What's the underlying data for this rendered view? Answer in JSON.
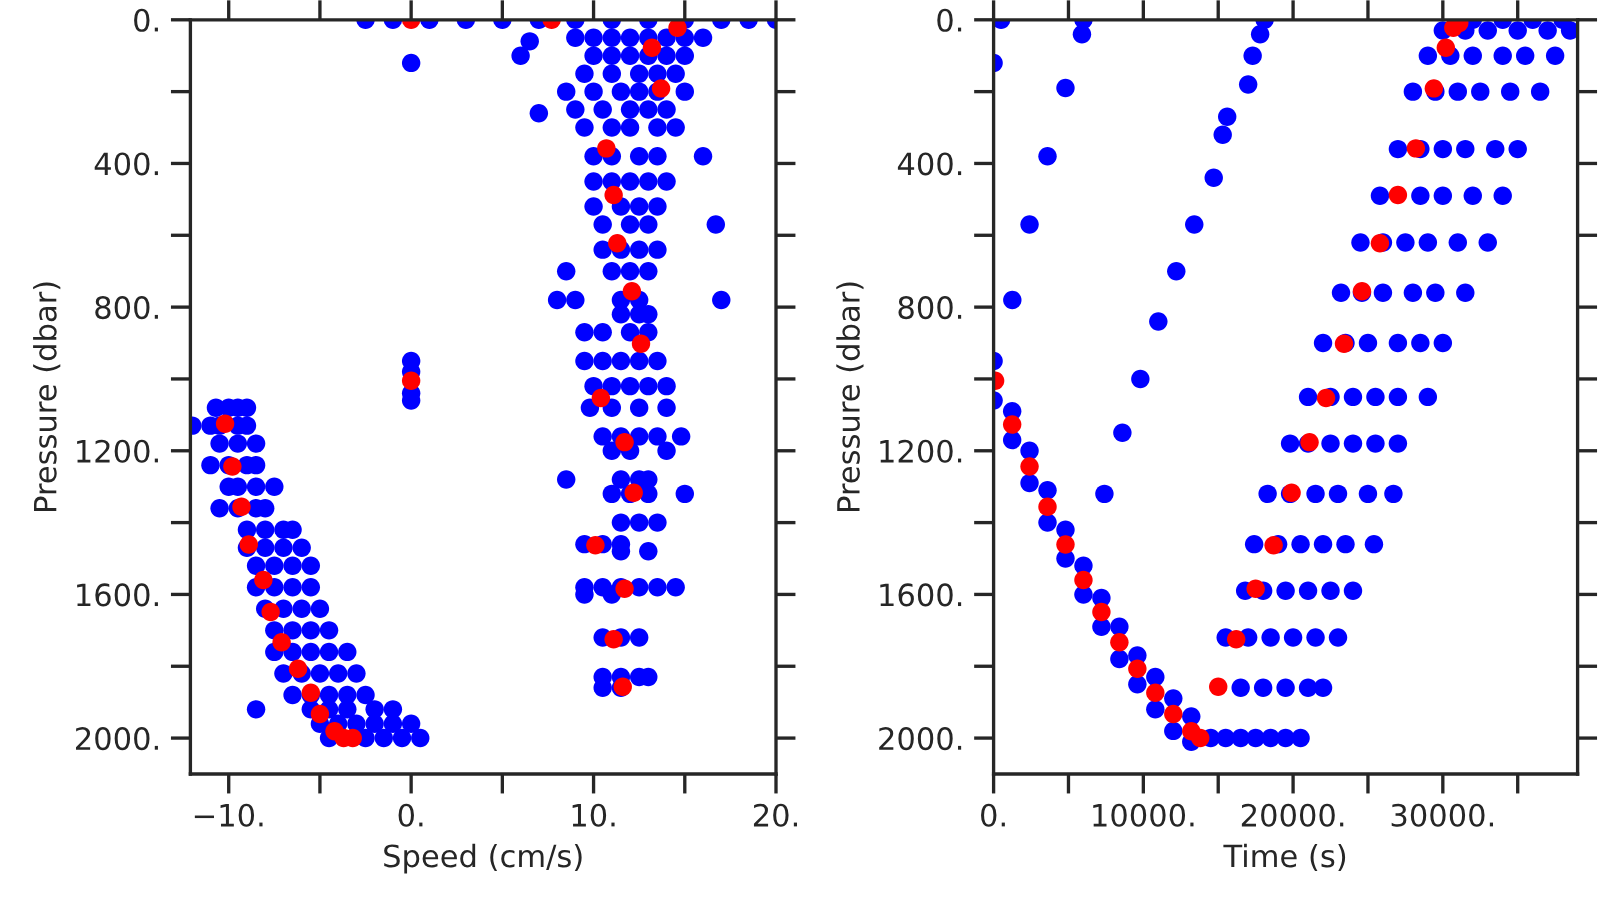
{
  "chart_data": [
    {
      "type": "scatter",
      "xlabel": "Speed (cm/s)",
      "ylabel": "Pressure (dbar)",
      "marker": "circle",
      "grid": false,
      "xlim": [
        -12.1,
        20
      ],
      "ylim": [
        2100,
        0
      ],
      "xticks": [
        {
          "value": -10,
          "label": "−10."
        },
        {
          "value": -5,
          "label": null
        },
        {
          "value": 0,
          "label": "0."
        },
        {
          "value": 5,
          "label": null
        },
        {
          "value": 10,
          "label": "10."
        },
        {
          "value": 15,
          "label": null
        },
        {
          "value": 20,
          "label": "20."
        }
      ],
      "yticks": [
        {
          "value": 0,
          "label": "0."
        },
        {
          "value": 200,
          "label": null
        },
        {
          "value": 400,
          "label": "400."
        },
        {
          "value": 600,
          "label": null
        },
        {
          "value": 800,
          "label": "800."
        },
        {
          "value": 1000,
          "label": null
        },
        {
          "value": 1200,
          "label": "1200."
        },
        {
          "value": 1400,
          "label": null
        },
        {
          "value": 1600,
          "label": "1600."
        },
        {
          "value": 1800,
          "label": null
        },
        {
          "value": 2000,
          "label": "2000."
        }
      ],
      "series": [
        {
          "color": "#0000ff",
          "x": [
            -2.5,
            -1,
            1,
            3,
            5,
            7,
            9,
            11,
            13,
            15,
            17,
            18.5,
            20,
            0,
            6,
            7,
            6.5,
            9,
            10,
            11,
            12,
            13,
            14,
            15,
            16,
            10,
            11,
            12,
            13,
            14,
            15,
            9.5,
            11,
            12.5,
            13.5,
            14.5,
            8.5,
            10,
            11.5,
            12.5,
            13.5,
            15,
            9,
            10.5,
            12,
            13,
            14,
            9.5,
            11,
            12,
            13.5,
            14.5,
            10,
            11,
            12.5,
            13.5,
            16,
            10,
            11,
            12,
            13,
            14,
            10,
            11.5,
            12.5,
            13.5,
            10.5,
            12,
            13,
            16.7,
            10.5,
            11.5,
            12.5,
            13.5,
            8.5,
            11,
            12,
            13,
            8,
            9,
            11.5,
            12.5,
            17,
            11.5,
            12.5,
            13,
            9.5,
            10.5,
            12,
            13,
            9.5,
            10.5,
            11.5,
            12.5,
            13.5,
            10,
            11,
            12,
            13,
            14,
            9.8,
            11,
            12.5,
            14,
            10.5,
            11.5,
            12.5,
            13.5,
            14.8,
            11,
            12,
            14,
            8.5,
            11.5,
            12.5,
            13,
            11,
            12,
            13,
            15,
            11.5,
            12.5,
            13.5,
            9.5,
            10.5,
            11.5,
            11.5,
            13,
            9.5,
            10.5,
            11.5,
            12.5,
            13.5,
            14.5,
            9.5,
            11,
            10.5,
            11.5,
            12.5,
            10.5,
            11.5,
            12.5,
            13,
            10.5,
            11.5,
            0,
            0,
            0,
            0,
            -10.7,
            -10,
            -9.5,
            -9,
            -12,
            -11,
            -10.5,
            -9.5,
            -9,
            -10.5,
            -9.5,
            -8.5,
            -11,
            -10,
            -9,
            -8.5,
            -10,
            -9.5,
            -8.5,
            -7.5,
            -10.5,
            -9.5,
            -8.5,
            -8,
            -9,
            -8,
            -7,
            -6.5,
            -9,
            -8,
            -7,
            -6,
            -8.5,
            -7.5,
            -6.5,
            -5.5,
            -8.5,
            -7.5,
            -6.5,
            -5.5,
            -8,
            -7,
            -6,
            -5,
            -7.5,
            -6.5,
            -5.5,
            -4.5,
            -7.5,
            -6.5,
            -5.5,
            -4.5,
            -3.5,
            -7,
            -6,
            -5,
            -4,
            -3,
            -6.5,
            -5.5,
            -4.5,
            -3.5,
            -2.5,
            -8.5,
            -5.5,
            -4.5,
            -3.5,
            -2,
            -1,
            -5,
            -4,
            -3,
            -2,
            -1,
            0,
            -4.5,
            -2.5,
            -1.5,
            -0.5,
            0.5
          ],
          "values": [
            0,
            0,
            0,
            0,
            0,
            0,
            0,
            0,
            0,
            0,
            0,
            0,
            0,
            120,
            100,
            260,
            60,
            50,
            50,
            50,
            50,
            50,
            50,
            50,
            50,
            100,
            100,
            100,
            100,
            100,
            100,
            150,
            150,
            150,
            150,
            150,
            200,
            200,
            200,
            200,
            200,
            200,
            250,
            250,
            250,
            250,
            250,
            300,
            300,
            300,
            300,
            300,
            380,
            380,
            380,
            380,
            380,
            450,
            450,
            450,
            450,
            450,
            520,
            520,
            520,
            520,
            570,
            570,
            570,
            570,
            640,
            640,
            640,
            640,
            700,
            700,
            700,
            700,
            780,
            780,
            780,
            780,
            780,
            820,
            820,
            820,
            870,
            870,
            870,
            870,
            950,
            950,
            950,
            950,
            950,
            1020,
            1020,
            1020,
            1020,
            1020,
            1080,
            1080,
            1080,
            1080,
            1160,
            1160,
            1160,
            1160,
            1160,
            1200,
            1200,
            1200,
            1280,
            1280,
            1280,
            1280,
            1320,
            1320,
            1320,
            1320,
            1400,
            1400,
            1400,
            1460,
            1460,
            1460,
            1480,
            1480,
            1580,
            1580,
            1580,
            1580,
            1580,
            1580,
            1600,
            1600,
            1720,
            1720,
            1720,
            1830,
            1830,
            1830,
            1830,
            1860,
            1860,
            950,
            980,
            1040,
            1060,
            1080,
            1080,
            1080,
            1080,
            1130,
            1130,
            1130,
            1130,
            1130,
            1180,
            1180,
            1180,
            1240,
            1240,
            1240,
            1240,
            1300,
            1300,
            1300,
            1300,
            1360,
            1360,
            1360,
            1360,
            1420,
            1420,
            1420,
            1420,
            1470,
            1470,
            1470,
            1470,
            1520,
            1520,
            1520,
            1520,
            1580,
            1580,
            1580,
            1580,
            1640,
            1640,
            1640,
            1640,
            1700,
            1700,
            1700,
            1700,
            1760,
            1760,
            1760,
            1760,
            1760,
            1820,
            1820,
            1820,
            1820,
            1820,
            1880,
            1880,
            1880,
            1880,
            1880,
            1920,
            1920,
            1920,
            1920,
            1920,
            1920,
            1960,
            1960,
            1960,
            1960,
            1960,
            1960,
            2000,
            2000,
            2000,
            2000,
            2000
          ]
        },
        {
          "color": "#ff0000",
          "x": [
            0,
            7.7,
            14.6,
            13.2,
            13.7,
            10.7,
            11.1,
            11.3,
            12.1,
            12.6,
            10.4,
            11.7,
            12.2,
            10.1,
            11.7,
            11.1,
            11.6,
            0,
            -10.2,
            -9.8,
            -9.3,
            -8.9,
            -8.1,
            -7.7,
            -7.1,
            -6.2,
            -5.5,
            -5,
            -4.2,
            -3.7,
            -3.2
          ],
          "values": [
            0,
            0,
            22,
            78,
            191,
            358,
            488,
            622,
            756,
            902,
            1053,
            1176,
            1317,
            1463,
            1584,
            1725,
            1857,
            1005,
            1125,
            1244,
            1356,
            1461,
            1560,
            1649,
            1733,
            1807,
            1874,
            1933,
            1981,
            2000,
            2000
          ]
        }
      ]
    },
    {
      "type": "scatter",
      "xlabel": "Time (s)",
      "ylabel": "Pressure (dbar)",
      "marker": "circle",
      "grid": false,
      "xlim": [
        0,
        39000
      ],
      "ylim": [
        2100,
        0
      ],
      "xticks": [
        {
          "value": 0,
          "label": "0."
        },
        {
          "value": 5000,
          "label": null
        },
        {
          "value": 10000,
          "label": "10000."
        },
        {
          "value": 15000,
          "label": null
        },
        {
          "value": 20000,
          "label": "20000."
        },
        {
          "value": 25000,
          "label": null
        },
        {
          "value": 30000,
          "label": "30000."
        },
        {
          "value": 35000,
          "label": null
        }
      ],
      "yticks": [
        {
          "value": 0,
          "label": "0."
        },
        {
          "value": 200,
          "label": null
        },
        {
          "value": 400,
          "label": "400."
        },
        {
          "value": 600,
          "label": null
        },
        {
          "value": 800,
          "label": "800."
        },
        {
          "value": 1000,
          "label": null
        },
        {
          "value": 1200,
          "label": "1200."
        },
        {
          "value": 1400,
          "label": null
        },
        {
          "value": 1600,
          "label": "1600."
        },
        {
          "value": 1800,
          "label": null
        },
        {
          "value": 2000,
          "label": "2000."
        }
      ],
      "series": [
        {
          "color": "#0000ff",
          "x": [
            0,
            0,
            1240,
            1240,
            2400,
            2400,
            3600,
            3600,
            4800,
            4800,
            6000,
            6000,
            7200,
            7200,
            8400,
            8400,
            9600,
            9600,
            10800,
            10800,
            12000,
            12000,
            13200,
            13200,
            500,
            0,
            4800,
            3600,
            2400,
            1250,
            6000,
            5900,
            18100,
            17800,
            17300,
            17000,
            15600,
            15300,
            14700,
            13400,
            12200,
            11000,
            9800,
            8600,
            7400,
            14500,
            15500,
            16500,
            17500,
            18500,
            19500,
            20500,
            16500,
            18000,
            19500,
            21000,
            22000,
            15500,
            17000,
            18500,
            20000,
            21500,
            23000,
            16800,
            18000,
            19500,
            21000,
            22500,
            24000,
            17400,
            19000,
            20500,
            22000,
            23500,
            25400,
            18300,
            19800,
            21500,
            23000,
            25000,
            26700,
            19800,
            21000,
            22500,
            24000,
            25500,
            27000,
            21000,
            22500,
            24000,
            25500,
            27000,
            29000,
            22000,
            23500,
            25000,
            27000,
            28500,
            30000,
            23200,
            24600,
            26000,
            28000,
            29500,
            31500,
            24500,
            26000,
            27500,
            29000,
            31000,
            33000,
            25800,
            28500,
            30000,
            32000,
            34000,
            27000,
            28500,
            30000,
            31500,
            33500,
            35000,
            28000,
            29500,
            31000,
            32500,
            34500,
            36500,
            29000,
            30500,
            32000,
            34000,
            35500,
            37500,
            30000,
            31500,
            33000,
            35000,
            37000,
            38500,
            32000,
            34000,
            36000,
            38000
          ],
          "values": [
            950,
            1060,
            1090,
            1170,
            1200,
            1290,
            1310,
            1400,
            1420,
            1500,
            1520,
            1600,
            1610,
            1690,
            1690,
            1780,
            1770,
            1850,
            1830,
            1920,
            1890,
            1980,
            1940,
            2010,
            0,
            120,
            190,
            380,
            570,
            780,
            0,
            40,
            0,
            40,
            100,
            180,
            270,
            320,
            440,
            570,
            700,
            840,
            1000,
            1150,
            1320,
            2000,
            2000,
            2000,
            2000,
            2000,
            2000,
            2000,
            1860,
            1860,
            1860,
            1860,
            1860,
            1720,
            1720,
            1720,
            1720,
            1720,
            1720,
            1590,
            1590,
            1590,
            1590,
            1590,
            1590,
            1460,
            1460,
            1460,
            1460,
            1460,
            1460,
            1320,
            1320,
            1320,
            1320,
            1320,
            1320,
            1180,
            1180,
            1180,
            1180,
            1180,
            1180,
            1050,
            1050,
            1050,
            1050,
            1050,
            1050,
            900,
            900,
            900,
            900,
            900,
            900,
            760,
            760,
            760,
            760,
            760,
            760,
            620,
            620,
            620,
            620,
            620,
            620,
            490,
            490,
            490,
            490,
            490,
            360,
            360,
            360,
            360,
            360,
            360,
            200,
            200,
            200,
            200,
            200,
            200,
            100,
            100,
            100,
            100,
            100,
            100,
            30,
            30,
            30,
            30,
            30,
            30,
            0,
            0,
            0,
            0
          ]
        },
        {
          "color": "#ff0000",
          "x": [
            100,
            1240,
            2400,
            3600,
            4800,
            6000,
            7200,
            8400,
            9600,
            10800,
            12000,
            13200,
            13800,
            15000,
            16200,
            17500,
            18700,
            19900,
            21100,
            22200,
            23400,
            24600,
            25800,
            27000,
            28200,
            29400,
            30200,
            30700,
            31100
          ],
          "values": [
            1005,
            1127,
            1244,
            1356,
            1461,
            1560,
            1649,
            1733,
            1807,
            1874,
            1933,
            1981,
            2000,
            1857,
            1725,
            1584,
            1463,
            1317,
            1176,
            1053,
            902,
            756,
            622,
            488,
            358,
            191,
            78,
            22,
            9
          ]
        }
      ]
    }
  ]
}
